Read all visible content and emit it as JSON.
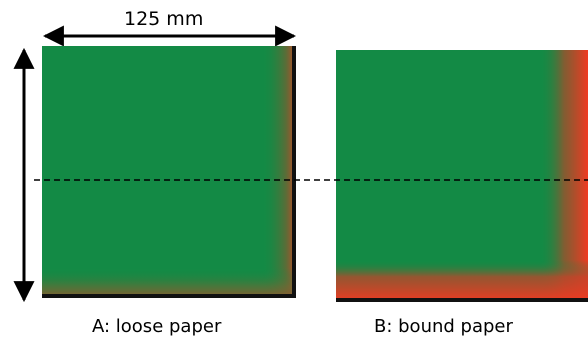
{
  "dimension": {
    "width_label": "125 mm"
  },
  "panels": [
    {
      "id": "A",
      "caption": "A: loose paper"
    },
    {
      "id": "B",
      "caption": "B: bound paper"
    }
  ],
  "colors": {
    "paper_green": "#138a45",
    "wet_red": "#f03a22",
    "mix_brown": "#8a5a2e",
    "edge_black": "#111111",
    "arrow": "#000000",
    "dashed_line": "#000000"
  }
}
